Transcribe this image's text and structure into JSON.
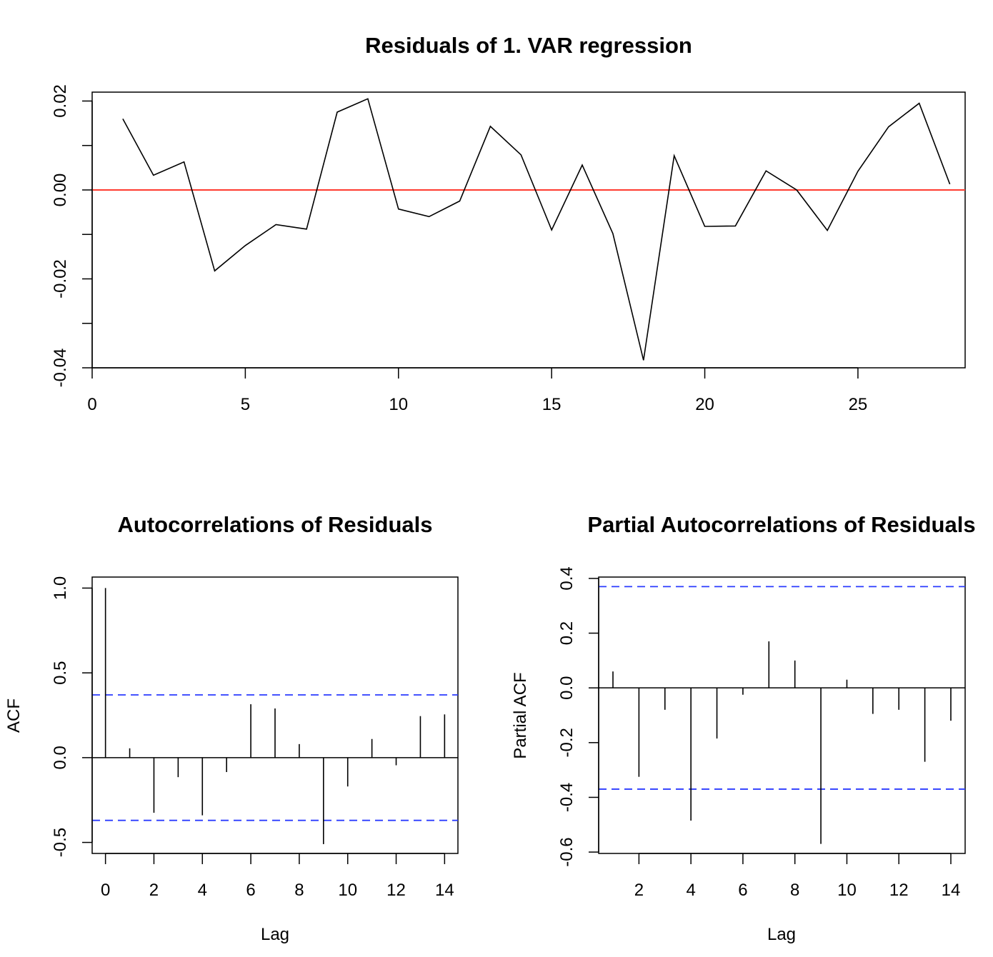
{
  "colors": {
    "line": "#000000",
    "zero_line": "#ff3b2f",
    "ci_line": "#2b3bff"
  },
  "chart_data": [
    {
      "type": "line",
      "title": "Residuals of 1. VAR regression",
      "xlabel": "",
      "ylabel": "",
      "xlim": [
        0,
        28.5
      ],
      "ylim": [
        -0.04,
        0.022
      ],
      "x_ticks": [
        0,
        5,
        10,
        15,
        20,
        25
      ],
      "y_ticks": [
        -0.04,
        -0.03,
        -0.02,
        -0.01,
        0.0,
        0.01,
        0.02
      ],
      "y_tick_labels": [
        {
          "value": -0.04,
          "label": "-0.04"
        },
        {
          "value": -0.02,
          "label": "-0.02"
        },
        {
          "value": 0.0,
          "label": "0.00"
        },
        {
          "value": 0.02,
          "label": "0.02"
        }
      ],
      "hline": 0,
      "x": [
        1,
        2,
        3,
        4,
        5,
        6,
        7,
        8,
        9,
        10,
        11,
        12,
        13,
        14,
        15,
        16,
        17,
        18,
        19,
        20,
        21,
        22,
        23,
        24,
        25,
        26,
        27,
        28
      ],
      "values": [
        0.016,
        0.0033,
        0.0063,
        -0.0182,
        -0.0125,
        -0.0078,
        -0.0088,
        0.0175,
        0.0205,
        -0.0043,
        -0.006,
        -0.0025,
        0.0143,
        0.0079,
        -0.009,
        0.0056,
        -0.0098,
        -0.0383,
        0.0077,
        -0.0082,
        -0.0081,
        0.0043,
        0.0,
        -0.0091,
        0.0042,
        0.0142,
        0.0195,
        0.0013
      ]
    },
    {
      "type": "bar",
      "title": "Autocorrelations of Residuals",
      "xlabel": "Lag",
      "ylabel": "ACF",
      "xlim": [
        -0.55,
        14.55
      ],
      "ylim": [
        -0.565,
        1.065
      ],
      "x_ticks": [
        0,
        2,
        4,
        6,
        8,
        10,
        12,
        14
      ],
      "y_ticks": [
        -0.5,
        0.0,
        0.5,
        1.0
      ],
      "y_tick_labels": [
        {
          "value": -0.5,
          "label": "-0.5"
        },
        {
          "value": 0.0,
          "label": "0.0"
        },
        {
          "value": 0.5,
          "label": "0.5"
        },
        {
          "value": 1.0,
          "label": "1.0"
        }
      ],
      "ci": 0.37,
      "x": [
        0,
        1,
        2,
        3,
        4,
        5,
        6,
        7,
        8,
        9,
        10,
        11,
        12,
        13,
        14
      ],
      "values": [
        1.0,
        0.055,
        -0.325,
        -0.115,
        -0.34,
        -0.085,
        0.315,
        0.29,
        0.08,
        -0.51,
        -0.17,
        0.11,
        -0.045,
        0.245,
        0.255
      ]
    },
    {
      "type": "bar",
      "title": "Partial Autocorrelations of Residuals",
      "xlabel": "Lag",
      "ylabel": "Partial ACF",
      "xlim": [
        0.45,
        14.55
      ],
      "ylim": [
        -0.605,
        0.405
      ],
      "x_ticks": [
        2,
        4,
        6,
        8,
        10,
        12,
        14
      ],
      "y_ticks": [
        -0.6,
        -0.4,
        -0.2,
        0.0,
        0.2,
        0.4
      ],
      "y_tick_labels": [
        {
          "value": -0.6,
          "label": "-0.6"
        },
        {
          "value": -0.4,
          "label": "-0.4"
        },
        {
          "value": -0.2,
          "label": "-0.2"
        },
        {
          "value": 0.0,
          "label": "0.0"
        },
        {
          "value": 0.2,
          "label": "0.2"
        },
        {
          "value": 0.4,
          "label": "0.4"
        }
      ],
      "ci": 0.37,
      "x": [
        1,
        2,
        3,
        4,
        5,
        6,
        7,
        8,
        9,
        10,
        11,
        12,
        13,
        14
      ],
      "values": [
        0.06,
        -0.325,
        -0.08,
        -0.485,
        -0.185,
        -0.025,
        0.17,
        0.1,
        -0.57,
        0.03,
        -0.095,
        -0.08,
        -0.27,
        -0.12
      ]
    }
  ]
}
